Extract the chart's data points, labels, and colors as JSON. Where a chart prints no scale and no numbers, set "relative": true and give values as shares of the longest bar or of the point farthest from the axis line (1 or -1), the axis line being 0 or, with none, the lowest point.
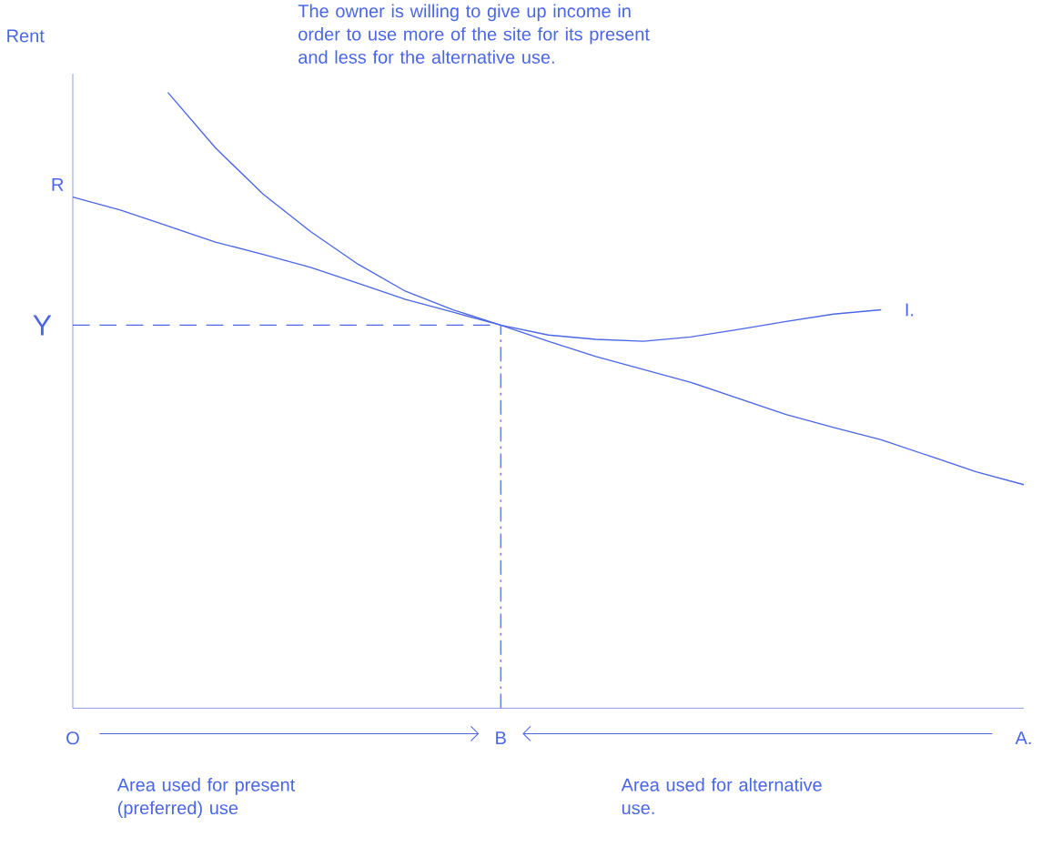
{
  "chart_data": {
    "type": "line",
    "relative": true,
    "ylabel": "Rent",
    "categories": [
      "O",
      null,
      null,
      null,
      null,
      null,
      null,
      null,
      null,
      "B",
      null,
      null,
      null,
      null,
      null,
      null,
      null,
      null,
      null,
      null,
      "A."
    ],
    "series": [
      {
        "color": "#4a66e6",
        "values": [
          0.83,
          0.809,
          0.783,
          0.757,
          0.737,
          0.716,
          0.69,
          0.664,
          0.643,
          0.622,
          0.596,
          0.571,
          0.55,
          0.529,
          0.503,
          0.477,
          0.456,
          0.436,
          0.41,
          0.384,
          0.363
        ]
      },
      {
        "name": "I.",
        "color": "#4a66e6",
        "values": [
          null,
          null,
          1.0,
          0.91,
          0.835,
          0.774,
          0.721,
          0.677,
          0.647,
          0.622,
          0.606,
          0.599,
          0.596,
          0.603,
          0.615,
          0.628,
          0.64,
          0.647,
          null,
          null,
          null
        ]
      }
    ],
    "ref_lines": [
      {
        "axis": "y",
        "value": 0.622,
        "label": "Y",
        "line_style": "dashed"
      },
      {
        "axis": "x",
        "value": "B",
        "line_style": "dashdotted"
      }
    ],
    "annotations": [
      "The owner is willing to give up income in order to use more of the site for its present and less for the alternative use.",
      "Area used for present (preferred) use",
      "Area used for alternative use.",
      {
        "text": "R",
        "x": "O",
        "y": 0.83
      }
    ],
    "marker": "none",
    "line_style": "solid"
  }
}
